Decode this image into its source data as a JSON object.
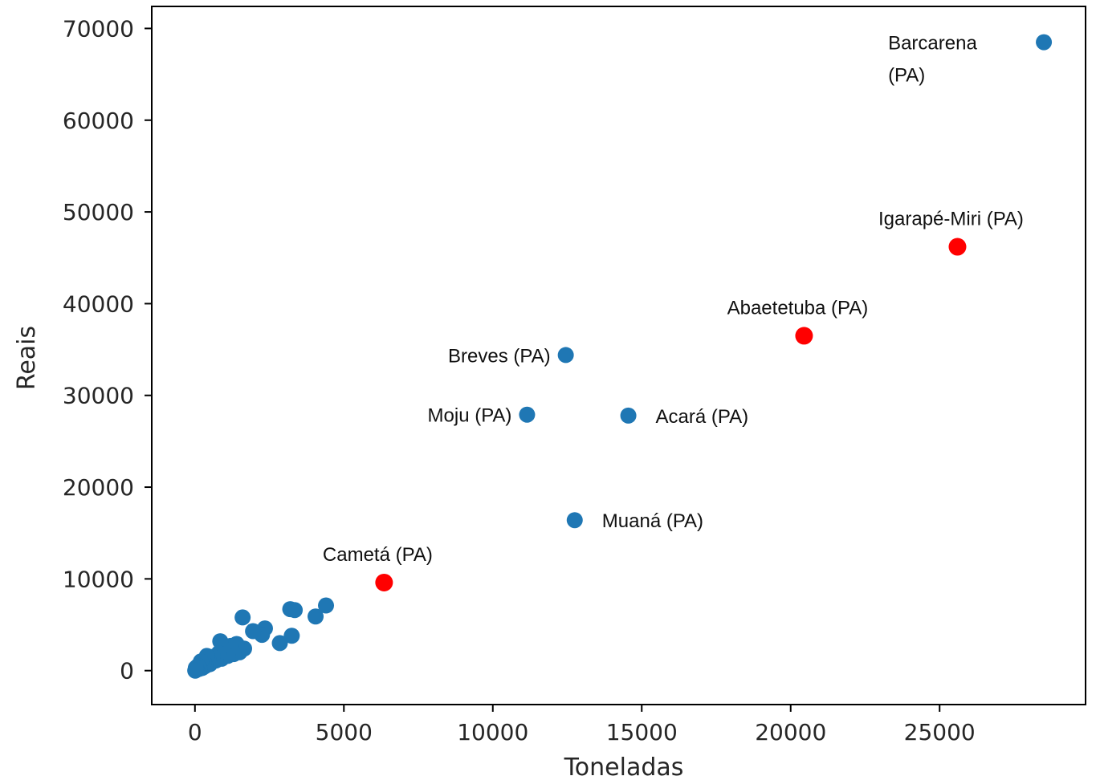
{
  "chart_data": {
    "type": "scatter",
    "title": "",
    "xlabel": "Toneladas",
    "ylabel": "Reais",
    "xlim": [
      -1450,
      29900
    ],
    "ylim": [
      -3700,
      72400
    ],
    "xticks": [
      0,
      5000,
      10000,
      15000,
      20000,
      25000
    ],
    "yticks": [
      0,
      10000,
      20000,
      30000,
      40000,
      50000,
      60000,
      70000
    ],
    "grid": false,
    "legend": "none",
    "colors": {
      "default": "#1f77b4",
      "highlight": "#ff0000"
    },
    "points": [
      {
        "x": 28500,
        "y": 68500,
        "highlight": false,
        "label": [
          "Barcarena",
          "(PA)"
        ],
        "label_pos": "upper-left"
      },
      {
        "x": 25600,
        "y": 46200,
        "highlight": true,
        "label": [
          "Igarapé-Miri (PA)"
        ],
        "label_pos": "above"
      },
      {
        "x": 20450,
        "y": 36500,
        "highlight": true,
        "label": [
          "Abaetetuba (PA)"
        ],
        "label_pos": "above"
      },
      {
        "x": 12450,
        "y": 34400,
        "highlight": false,
        "label": [
          "Breves (PA)"
        ],
        "label_pos": "left"
      },
      {
        "x": 11150,
        "y": 27900,
        "highlight": false,
        "label": [
          "Moju (PA)"
        ],
        "label_pos": "left"
      },
      {
        "x": 14550,
        "y": 27800,
        "highlight": false,
        "label": [
          "Acará (PA)"
        ],
        "label_pos": "right"
      },
      {
        "x": 12750,
        "y": 16400,
        "highlight": false,
        "label": [
          "Muaná (PA)"
        ],
        "label_pos": "right"
      },
      {
        "x": 6350,
        "y": 9600,
        "highlight": true,
        "label": [
          "Cametá (PA)"
        ],
        "label_pos": "above"
      },
      {
        "x": 4400,
        "y": 7100,
        "highlight": false
      },
      {
        "x": 4050,
        "y": 5900,
        "highlight": false
      },
      {
        "x": 3200,
        "y": 6700,
        "highlight": false
      },
      {
        "x": 3350,
        "y": 6600,
        "highlight": false
      },
      {
        "x": 3250,
        "y": 3800,
        "highlight": false
      },
      {
        "x": 2850,
        "y": 3000,
        "highlight": false
      },
      {
        "x": 2350,
        "y": 4600,
        "highlight": false
      },
      {
        "x": 2250,
        "y": 3900,
        "highlight": false
      },
      {
        "x": 1950,
        "y": 4300,
        "highlight": false
      },
      {
        "x": 1600,
        "y": 5800,
        "highlight": false
      },
      {
        "x": 1650,
        "y": 2400,
        "highlight": false
      },
      {
        "x": 1500,
        "y": 2000,
        "highlight": false
      },
      {
        "x": 1400,
        "y": 2900,
        "highlight": false
      },
      {
        "x": 1300,
        "y": 1800,
        "highlight": false
      },
      {
        "x": 1200,
        "y": 2700,
        "highlight": false
      },
      {
        "x": 1100,
        "y": 1600,
        "highlight": false
      },
      {
        "x": 900,
        "y": 1300,
        "highlight": false
      },
      {
        "x": 850,
        "y": 3200,
        "highlight": false
      },
      {
        "x": 800,
        "y": 1900,
        "highlight": false
      },
      {
        "x": 700,
        "y": 1100,
        "highlight": false
      },
      {
        "x": 600,
        "y": 1500,
        "highlight": false
      },
      {
        "x": 500,
        "y": 700,
        "highlight": false
      },
      {
        "x": 450,
        "y": 1200,
        "highlight": false
      },
      {
        "x": 400,
        "y": 1600,
        "highlight": false
      },
      {
        "x": 350,
        "y": 500,
        "highlight": false
      },
      {
        "x": 300,
        "y": 900,
        "highlight": false
      },
      {
        "x": 250,
        "y": 300,
        "highlight": false
      },
      {
        "x": 200,
        "y": 1000,
        "highlight": false
      },
      {
        "x": 150,
        "y": 200,
        "highlight": false
      },
      {
        "x": 100,
        "y": 500,
        "highlight": false
      },
      {
        "x": 60,
        "y": 100,
        "highlight": false
      },
      {
        "x": 30,
        "y": 300,
        "highlight": false
      },
      {
        "x": 10,
        "y": 0,
        "highlight": false
      }
    ]
  }
}
